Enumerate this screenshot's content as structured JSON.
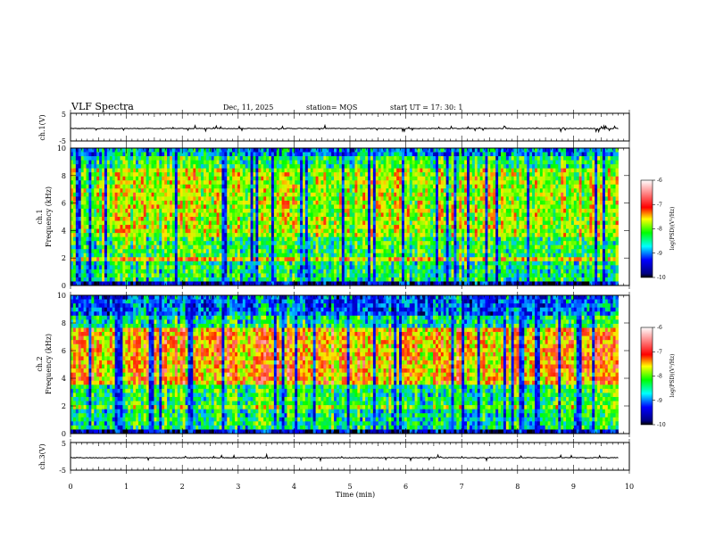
{
  "header": {
    "title": "VLF Spectra",
    "date": "Dec. 11, 2025",
    "station": "station= MOS",
    "start": "start  UT  =   17: 30: 1"
  },
  "chart_data": [
    {
      "type": "line",
      "name": "ch1-voltage",
      "ylabel": "ch.1(V)",
      "ylim": [
        -5,
        5
      ],
      "yticks": [
        "5",
        "-5"
      ],
      "xlim": [
        0,
        10
      ],
      "baseline": -0.5,
      "x_end": 9.8
    },
    {
      "type": "heatmap",
      "name": "ch1-spectrogram",
      "ylabel": [
        "ch.1",
        "Frequency (kHz)"
      ],
      "ylim": [
        0,
        10
      ],
      "yticks": [
        "0",
        "2",
        "4",
        "6",
        "8",
        "10"
      ],
      "xlim": [
        0,
        10
      ],
      "x_end": 9.8,
      "colorbar": {
        "label": "log(PSD)(V²/Hz)",
        "range": [
          -10,
          -6
        ],
        "ticks": [
          "-6",
          "-7",
          "-8",
          "-9",
          "-10"
        ]
      }
    },
    {
      "type": "heatmap",
      "name": "ch2-spectrogram",
      "ylabel": [
        "ch.2",
        "Frequency (kHz)"
      ],
      "ylim": [
        0,
        10
      ],
      "yticks": [
        "0",
        "2",
        "4",
        "6",
        "8",
        "10"
      ],
      "xlim": [
        0,
        10
      ],
      "x_end": 9.8,
      "colorbar": {
        "label": "log(PSD)(V²/Hz)",
        "range": [
          -10,
          -6
        ],
        "ticks": [
          "-6",
          "-7",
          "-8",
          "-9",
          "-10"
        ]
      }
    },
    {
      "type": "line",
      "name": "ch3-voltage",
      "ylabel": "ch.3(V)",
      "ylim": [
        -5,
        5
      ],
      "yticks": [
        "5",
        "-5"
      ],
      "xlim": [
        0,
        10
      ],
      "baseline": -0.5,
      "x_end": 9.8
    }
  ],
  "xaxis": {
    "label": "Time  (min)",
    "ticks": [
      "0",
      "1",
      "2",
      "3",
      "4",
      "5",
      "6",
      "7",
      "8",
      "9",
      "10"
    ]
  },
  "colors": {
    "low": "#000080",
    "mid": "#00ff00",
    "high": "#ff0000",
    "max": "#ffffff"
  }
}
